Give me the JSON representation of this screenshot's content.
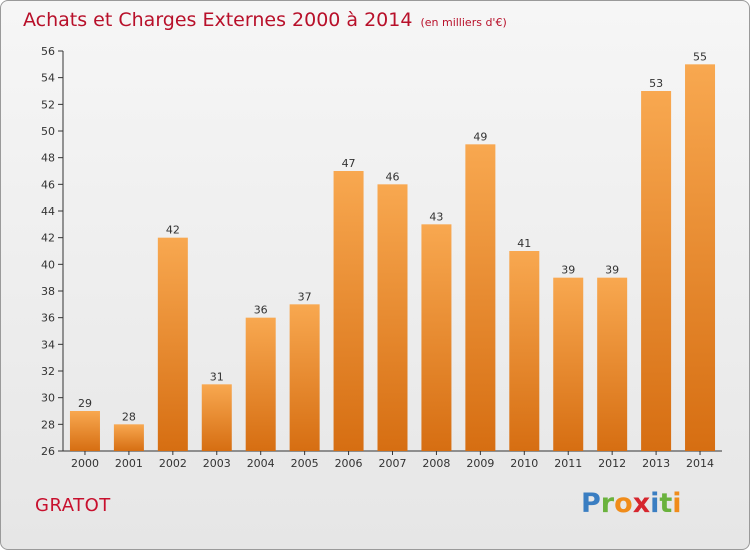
{
  "title": "Achats et Charges Externes 2000 à 2014",
  "subtitle": "(en milliers d'€)",
  "commune": "GRATOT",
  "logo": {
    "letters": [
      "P",
      "r",
      "o",
      "x",
      "i",
      "t",
      "i"
    ],
    "colors": [
      "#3a7ec2",
      "#6ab23d",
      "#f08c1a",
      "#d6262e",
      "#3a7ec2",
      "#6ab23d",
      "#f08c1a"
    ]
  },
  "colors": {
    "bar_light": "#f8a850",
    "bar_dark": "#d66e12",
    "title": "#b8102a"
  },
  "chart_data": {
    "type": "bar",
    "categories": [
      "2000",
      "2001",
      "2002",
      "2003",
      "2004",
      "2005",
      "2006",
      "2007",
      "2008",
      "2009",
      "2010",
      "2011",
      "2012",
      "2013",
      "2014"
    ],
    "values": [
      29,
      28,
      42,
      31,
      36,
      37,
      47,
      46,
      43,
      49,
      41,
      39,
      39,
      53,
      55
    ],
    "ylim": [
      26,
      56
    ],
    "yticks": [
      26,
      28,
      30,
      32,
      34,
      36,
      38,
      40,
      42,
      44,
      46,
      48,
      50,
      52,
      54,
      56
    ],
    "grid": false,
    "title": "Achats et Charges Externes 2000 à 2014",
    "xlabel": "",
    "ylabel": ""
  }
}
